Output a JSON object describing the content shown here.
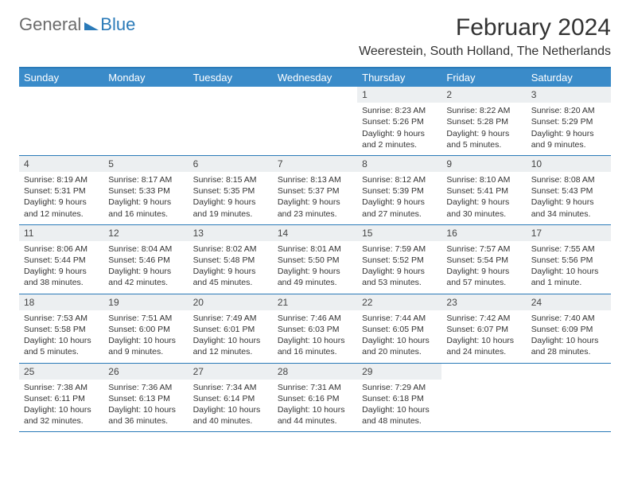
{
  "logo": {
    "text1": "General",
    "text2": "Blue"
  },
  "title": "February 2024",
  "location": "Weerestein, South Holland, The Netherlands",
  "colors": {
    "header_bg": "#3a8bc9",
    "border": "#2a7ab8",
    "daynum_bg": "#eceff1",
    "text": "#333333"
  },
  "day_names": [
    "Sunday",
    "Monday",
    "Tuesday",
    "Wednesday",
    "Thursday",
    "Friday",
    "Saturday"
  ],
  "weeks": [
    [
      {
        "n": "",
        "sr": "",
        "ss": "",
        "dl": ""
      },
      {
        "n": "",
        "sr": "",
        "ss": "",
        "dl": ""
      },
      {
        "n": "",
        "sr": "",
        "ss": "",
        "dl": ""
      },
      {
        "n": "",
        "sr": "",
        "ss": "",
        "dl": ""
      },
      {
        "n": "1",
        "sr": "Sunrise: 8:23 AM",
        "ss": "Sunset: 5:26 PM",
        "dl": "Daylight: 9 hours and 2 minutes."
      },
      {
        "n": "2",
        "sr": "Sunrise: 8:22 AM",
        "ss": "Sunset: 5:28 PM",
        "dl": "Daylight: 9 hours and 5 minutes."
      },
      {
        "n": "3",
        "sr": "Sunrise: 8:20 AM",
        "ss": "Sunset: 5:29 PM",
        "dl": "Daylight: 9 hours and 9 minutes."
      }
    ],
    [
      {
        "n": "4",
        "sr": "Sunrise: 8:19 AM",
        "ss": "Sunset: 5:31 PM",
        "dl": "Daylight: 9 hours and 12 minutes."
      },
      {
        "n": "5",
        "sr": "Sunrise: 8:17 AM",
        "ss": "Sunset: 5:33 PM",
        "dl": "Daylight: 9 hours and 16 minutes."
      },
      {
        "n": "6",
        "sr": "Sunrise: 8:15 AM",
        "ss": "Sunset: 5:35 PM",
        "dl": "Daylight: 9 hours and 19 minutes."
      },
      {
        "n": "7",
        "sr": "Sunrise: 8:13 AM",
        "ss": "Sunset: 5:37 PM",
        "dl": "Daylight: 9 hours and 23 minutes."
      },
      {
        "n": "8",
        "sr": "Sunrise: 8:12 AM",
        "ss": "Sunset: 5:39 PM",
        "dl": "Daylight: 9 hours and 27 minutes."
      },
      {
        "n": "9",
        "sr": "Sunrise: 8:10 AM",
        "ss": "Sunset: 5:41 PM",
        "dl": "Daylight: 9 hours and 30 minutes."
      },
      {
        "n": "10",
        "sr": "Sunrise: 8:08 AM",
        "ss": "Sunset: 5:43 PM",
        "dl": "Daylight: 9 hours and 34 minutes."
      }
    ],
    [
      {
        "n": "11",
        "sr": "Sunrise: 8:06 AM",
        "ss": "Sunset: 5:44 PM",
        "dl": "Daylight: 9 hours and 38 minutes."
      },
      {
        "n": "12",
        "sr": "Sunrise: 8:04 AM",
        "ss": "Sunset: 5:46 PM",
        "dl": "Daylight: 9 hours and 42 minutes."
      },
      {
        "n": "13",
        "sr": "Sunrise: 8:02 AM",
        "ss": "Sunset: 5:48 PM",
        "dl": "Daylight: 9 hours and 45 minutes."
      },
      {
        "n": "14",
        "sr": "Sunrise: 8:01 AM",
        "ss": "Sunset: 5:50 PM",
        "dl": "Daylight: 9 hours and 49 minutes."
      },
      {
        "n": "15",
        "sr": "Sunrise: 7:59 AM",
        "ss": "Sunset: 5:52 PM",
        "dl": "Daylight: 9 hours and 53 minutes."
      },
      {
        "n": "16",
        "sr": "Sunrise: 7:57 AM",
        "ss": "Sunset: 5:54 PM",
        "dl": "Daylight: 9 hours and 57 minutes."
      },
      {
        "n": "17",
        "sr": "Sunrise: 7:55 AM",
        "ss": "Sunset: 5:56 PM",
        "dl": "Daylight: 10 hours and 1 minute."
      }
    ],
    [
      {
        "n": "18",
        "sr": "Sunrise: 7:53 AM",
        "ss": "Sunset: 5:58 PM",
        "dl": "Daylight: 10 hours and 5 minutes."
      },
      {
        "n": "19",
        "sr": "Sunrise: 7:51 AM",
        "ss": "Sunset: 6:00 PM",
        "dl": "Daylight: 10 hours and 9 minutes."
      },
      {
        "n": "20",
        "sr": "Sunrise: 7:49 AM",
        "ss": "Sunset: 6:01 PM",
        "dl": "Daylight: 10 hours and 12 minutes."
      },
      {
        "n": "21",
        "sr": "Sunrise: 7:46 AM",
        "ss": "Sunset: 6:03 PM",
        "dl": "Daylight: 10 hours and 16 minutes."
      },
      {
        "n": "22",
        "sr": "Sunrise: 7:44 AM",
        "ss": "Sunset: 6:05 PM",
        "dl": "Daylight: 10 hours and 20 minutes."
      },
      {
        "n": "23",
        "sr": "Sunrise: 7:42 AM",
        "ss": "Sunset: 6:07 PM",
        "dl": "Daylight: 10 hours and 24 minutes."
      },
      {
        "n": "24",
        "sr": "Sunrise: 7:40 AM",
        "ss": "Sunset: 6:09 PM",
        "dl": "Daylight: 10 hours and 28 minutes."
      }
    ],
    [
      {
        "n": "25",
        "sr": "Sunrise: 7:38 AM",
        "ss": "Sunset: 6:11 PM",
        "dl": "Daylight: 10 hours and 32 minutes."
      },
      {
        "n": "26",
        "sr": "Sunrise: 7:36 AM",
        "ss": "Sunset: 6:13 PM",
        "dl": "Daylight: 10 hours and 36 minutes."
      },
      {
        "n": "27",
        "sr": "Sunrise: 7:34 AM",
        "ss": "Sunset: 6:14 PM",
        "dl": "Daylight: 10 hours and 40 minutes."
      },
      {
        "n": "28",
        "sr": "Sunrise: 7:31 AM",
        "ss": "Sunset: 6:16 PM",
        "dl": "Daylight: 10 hours and 44 minutes."
      },
      {
        "n": "29",
        "sr": "Sunrise: 7:29 AM",
        "ss": "Sunset: 6:18 PM",
        "dl": "Daylight: 10 hours and 48 minutes."
      },
      {
        "n": "",
        "sr": "",
        "ss": "",
        "dl": ""
      },
      {
        "n": "",
        "sr": "",
        "ss": "",
        "dl": ""
      }
    ]
  ]
}
